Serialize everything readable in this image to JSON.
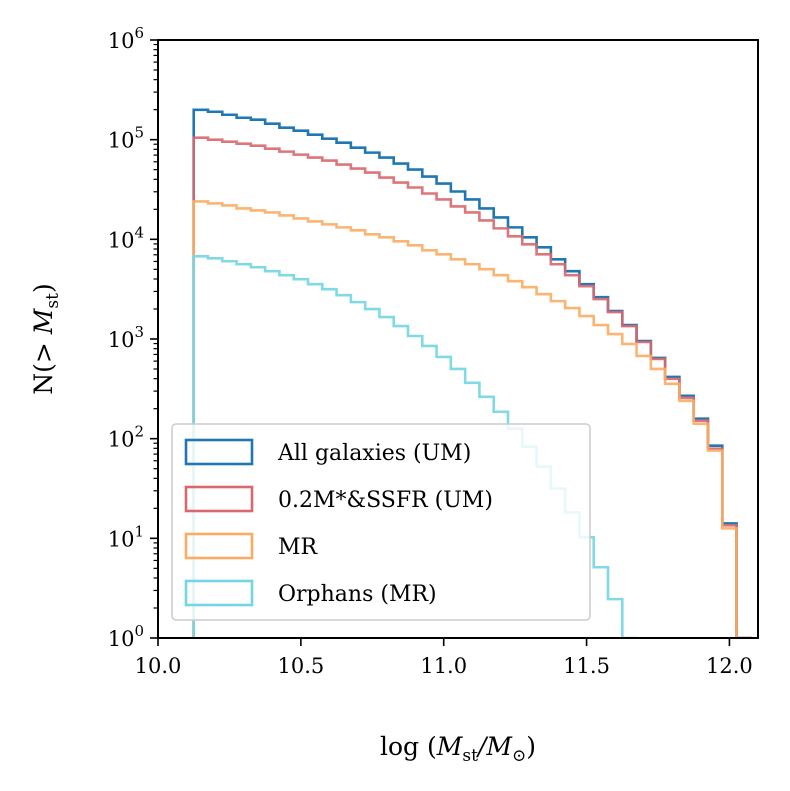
{
  "chart_data": {
    "type": "line",
    "style": "step-histogram",
    "xlabel": "log (M_st/M_⊙)",
    "ylabel": "N(> M_st)",
    "xlim": [
      10.0,
      12.1
    ],
    "ylim_log10": [
      0,
      6
    ],
    "yscale": "log",
    "xticks": [
      {
        "value": 10.0,
        "label": "10.0"
      },
      {
        "value": 10.5,
        "label": "10.5"
      },
      {
        "value": 11.0,
        "label": "11.0"
      },
      {
        "value": 11.5,
        "label": "11.5"
      },
      {
        "value": 12.0,
        "label": "12.0"
      }
    ],
    "yticks": [
      {
        "exp": 0,
        "base": "10",
        "sup": "0"
      },
      {
        "exp": 1,
        "base": "10",
        "sup": "1"
      },
      {
        "exp": 2,
        "base": "10",
        "sup": "2"
      },
      {
        "exp": 3,
        "base": "10",
        "sup": "3"
      },
      {
        "exp": 4,
        "base": "10",
        "sup": "4"
      },
      {
        "exp": 5,
        "base": "10",
        "sup": "5"
      },
      {
        "exp": 6,
        "base": "10",
        "sup": "6"
      }
    ],
    "legend_position": "lower-left",
    "x_start": 10.125,
    "bin_width": 0.05,
    "series": [
      {
        "name": "All galaxies (UM)",
        "color": "#1f77b4",
        "log10_values": [
          5.3,
          5.28,
          5.25,
          5.22,
          5.2,
          5.16,
          5.12,
          5.09,
          5.05,
          5.01,
          4.97,
          4.92,
          4.87,
          4.82,
          4.76,
          4.7,
          4.63,
          4.56,
          4.48,
          4.4,
          4.31,
          4.22,
          4.12,
          4.02,
          3.92,
          3.8,
          3.68,
          3.55,
          3.42,
          3.28,
          3.14,
          2.98,
          2.81,
          2.62,
          2.43,
          2.2,
          1.93,
          1.15,
          0.0
        ]
      },
      {
        "name": "0.2M*&SSFR (UM)",
        "color": "#d9676d",
        "log10_values": [
          5.02,
          5.0,
          4.98,
          4.96,
          4.94,
          4.91,
          4.88,
          4.85,
          4.82,
          4.79,
          4.75,
          4.71,
          4.67,
          4.62,
          4.57,
          4.52,
          4.46,
          4.4,
          4.33,
          4.27,
          4.19,
          4.11,
          4.03,
          3.95,
          3.85,
          3.75,
          3.64,
          3.53,
          3.4,
          3.27,
          3.13,
          2.97,
          2.8,
          2.6,
          2.41,
          2.18,
          1.9,
          1.13,
          0.0
        ]
      },
      {
        "name": "MR",
        "color": "#fbac62",
        "log10_values": [
          4.38,
          4.36,
          4.34,
          4.31,
          4.29,
          4.27,
          4.24,
          4.21,
          4.18,
          4.15,
          4.12,
          4.09,
          4.05,
          4.02,
          3.98,
          3.94,
          3.89,
          3.85,
          3.8,
          3.75,
          3.7,
          3.64,
          3.58,
          3.52,
          3.45,
          3.38,
          3.31,
          3.23,
          3.14,
          3.05,
          2.95,
          2.83,
          2.7,
          2.55,
          2.38,
          2.15,
          1.88,
          1.1,
          0.0
        ]
      },
      {
        "name": "Orphans (MR)",
        "color": "#72d6e3",
        "log10_values": [
          3.83,
          3.81,
          3.78,
          3.75,
          3.72,
          3.68,
          3.64,
          3.6,
          3.55,
          3.5,
          3.44,
          3.37,
          3.3,
          3.22,
          3.13,
          3.03,
          2.93,
          2.82,
          2.7,
          2.56,
          2.42,
          2.27,
          2.1,
          1.92,
          1.72,
          1.5,
          1.26,
          1.01,
          0.71,
          0.39,
          0.0
        ]
      }
    ]
  }
}
